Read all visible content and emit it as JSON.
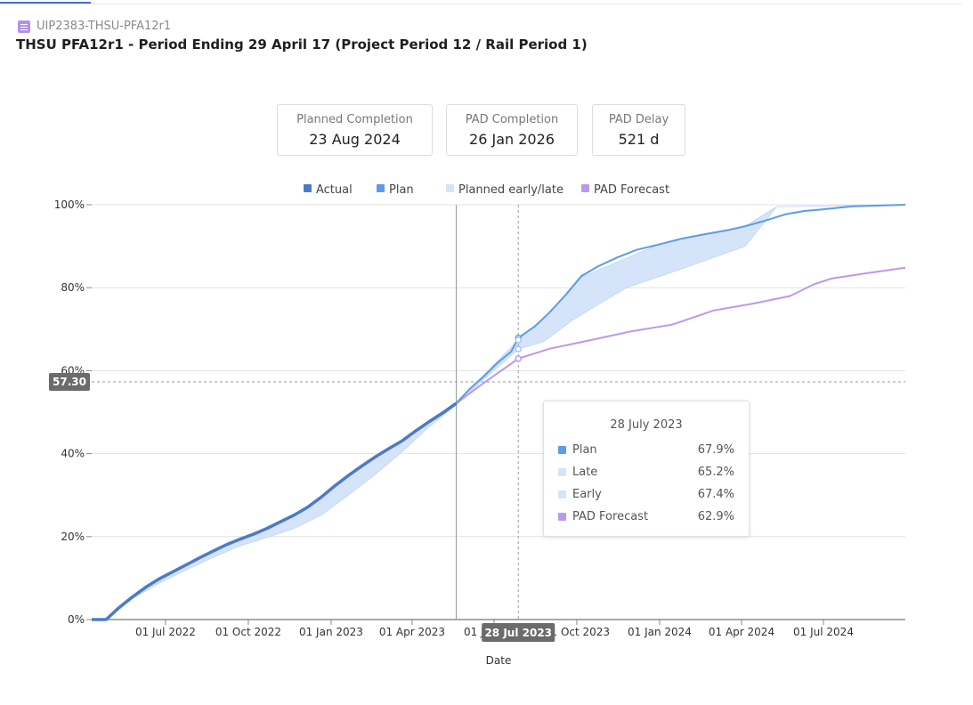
{
  "header": {
    "id": "UIP2383-THSU-PFA12r1",
    "title": "THSU PFA12r1 - Period Ending 29 April 17 (Project Period 12 / Rail Period 1)"
  },
  "cards": [
    {
      "label": "Planned Completion",
      "value": "23 Aug 2024"
    },
    {
      "label": "PAD Completion",
      "value": "26 Jan 2026"
    },
    {
      "label": "PAD Delay",
      "value": "521 d"
    }
  ],
  "colors": {
    "actual": "#4a7bc8",
    "plan": "#5b9bec",
    "band": "#d6e4fa",
    "pad": "#bb99ea"
  },
  "chart_data": {
    "type": "line",
    "xlabel": "Date",
    "ylim": [
      0,
      100
    ],
    "x_range": [
      "2022-04-10",
      "2024-09-30"
    ],
    "x_ticks": [
      {
        "date": "2022-07-01",
        "label": "01 Jul 2022"
      },
      {
        "date": "2022-10-01",
        "label": "01 Oct 2022"
      },
      {
        "date": "2023-01-01",
        "label": "01 Jan 2023"
      },
      {
        "date": "2023-04-01",
        "label": "01 Apr 2023"
      },
      {
        "date": "2023-07-01",
        "label": "01 Jul 2023"
      },
      {
        "date": "2023-10-01",
        "label": "01 Oct 2023"
      },
      {
        "date": "2024-01-01",
        "label": "01 Jan 2024"
      },
      {
        "date": "2024-04-01",
        "label": "01 Apr 2024"
      },
      {
        "date": "2024-07-01",
        "label": "01 Jul 2024"
      }
    ],
    "y_ticks": [
      {
        "value": 0,
        "label": "0%"
      },
      {
        "value": 20,
        "label": "20%"
      },
      {
        "value": 40,
        "label": "40%"
      },
      {
        "value": 60,
        "label": "60%"
      },
      {
        "value": 80,
        "label": "80%"
      },
      {
        "value": 100,
        "label": "100%"
      }
    ],
    "legend": {
      "placement": "top-center",
      "items": [
        {
          "name": "Actual",
          "color": "#4a7bc8"
        },
        {
          "name": "Plan",
          "color": "#5b9bec"
        },
        {
          "name": "Planned early/late",
          "color": "#d6e4fa"
        },
        {
          "name": "PAD Forecast",
          "color": "#bb99ea"
        }
      ]
    },
    "series": [
      {
        "name": "Actual",
        "points": [
          [
            "2022-04-10",
            0
          ],
          [
            "2022-04-26",
            0
          ],
          [
            "2022-05-10",
            2.8
          ],
          [
            "2022-05-25",
            5.4
          ],
          [
            "2022-06-09",
            7.8
          ],
          [
            "2022-06-24",
            9.8
          ],
          [
            "2022-07-09",
            11.5
          ],
          [
            "2022-07-24",
            13.2
          ],
          [
            "2022-08-08",
            14.9
          ],
          [
            "2022-08-23",
            16.5
          ],
          [
            "2022-09-07",
            18.1
          ],
          [
            "2022-09-22",
            19.4
          ],
          [
            "2022-10-07",
            20.6
          ],
          [
            "2022-10-22",
            22.0
          ],
          [
            "2022-11-06",
            23.6
          ],
          [
            "2022-11-21",
            25.2
          ],
          [
            "2022-12-06",
            27.1
          ],
          [
            "2022-12-21",
            29.5
          ],
          [
            "2023-01-05",
            32.2
          ],
          [
            "2023-01-20",
            34.7
          ],
          [
            "2023-02-04",
            37.0
          ],
          [
            "2023-02-19",
            39.2
          ],
          [
            "2023-03-06",
            41.2
          ],
          [
            "2023-03-21",
            43.1
          ],
          [
            "2023-04-05",
            45.5
          ],
          [
            "2023-04-20",
            47.7
          ],
          [
            "2023-05-05",
            49.8
          ],
          [
            "2023-05-20",
            52.1
          ]
        ]
      },
      {
        "name": "Plan",
        "points": [
          [
            "2023-05-20",
            52.1
          ],
          [
            "2023-06-05",
            55.8
          ],
          [
            "2023-06-20",
            58.7
          ],
          [
            "2023-07-05",
            61.9
          ],
          [
            "2023-07-20",
            64.6
          ],
          [
            "2023-07-28",
            67.9
          ],
          [
            "2023-08-15",
            70.6
          ],
          [
            "2023-09-01",
            74.1
          ],
          [
            "2023-09-20",
            78.6
          ],
          [
            "2023-10-06",
            82.8
          ],
          [
            "2023-10-25",
            85.2
          ],
          [
            "2023-11-15",
            87.3
          ],
          [
            "2023-12-06",
            89.1
          ],
          [
            "2023-12-31",
            90.4
          ],
          [
            "2024-01-25",
            91.8
          ],
          [
            "2024-02-20",
            92.9
          ],
          [
            "2024-03-15",
            93.8
          ],
          [
            "2024-04-05",
            94.8
          ],
          [
            "2024-04-28",
            96.2
          ],
          [
            "2024-05-20",
            97.7
          ],
          [
            "2024-06-10",
            98.5
          ],
          [
            "2024-07-01",
            98.9
          ],
          [
            "2024-08-01",
            99.6
          ],
          [
            "2024-09-30",
            100
          ]
        ]
      },
      {
        "name": "Planned early/late",
        "early": [
          [
            "2022-04-10",
            0
          ],
          [
            "2022-04-26",
            0
          ],
          [
            "2022-05-25",
            5.4
          ],
          [
            "2022-06-24",
            9.5
          ],
          [
            "2022-07-24",
            13.2
          ],
          [
            "2022-08-23",
            16.5
          ],
          [
            "2022-09-22",
            19.4
          ],
          [
            "2022-10-22",
            22.0
          ],
          [
            "2022-11-21",
            25.2
          ],
          [
            "2022-12-21",
            29.5
          ],
          [
            "2023-01-20",
            34.7
          ],
          [
            "2023-02-19",
            39.2
          ],
          [
            "2023-03-21",
            43.3
          ],
          [
            "2023-04-20",
            48.0
          ],
          [
            "2023-05-20",
            52.5
          ],
          [
            "2023-06-20",
            59.0
          ],
          [
            "2023-07-28",
            67.4
          ],
          [
            "2023-09-01",
            74.0
          ],
          [
            "2023-10-06",
            82.5
          ],
          [
            "2023-12-31",
            90.4
          ],
          [
            "2024-04-05",
            94.8
          ],
          [
            "2024-05-10",
            99.5
          ],
          [
            "2024-09-30",
            100
          ]
        ],
        "late": [
          [
            "2022-04-10",
            0
          ],
          [
            "2022-04-26",
            0
          ],
          [
            "2022-05-25",
            5.0
          ],
          [
            "2022-06-24",
            8.8
          ],
          [
            "2022-07-24",
            12.0
          ],
          [
            "2022-08-23",
            15.0
          ],
          [
            "2022-09-22",
            17.8
          ],
          [
            "2022-10-22",
            19.8
          ],
          [
            "2022-11-21",
            22.0
          ],
          [
            "2022-12-21",
            25.2
          ],
          [
            "2023-01-20",
            30.0
          ],
          [
            "2023-02-19",
            35.0
          ],
          [
            "2023-03-21",
            40.5
          ],
          [
            "2023-04-20",
            46.5
          ],
          [
            "2023-05-20",
            51.8
          ],
          [
            "2023-06-20",
            58.0
          ],
          [
            "2023-07-28",
            65.2
          ],
          [
            "2023-08-25",
            67.0
          ],
          [
            "2023-09-25",
            72.0
          ],
          [
            "2023-10-25",
            76.0
          ],
          [
            "2023-11-25",
            80.0
          ],
          [
            "2024-01-25",
            84.5
          ],
          [
            "2024-04-05",
            90.0
          ],
          [
            "2024-05-10",
            99.5
          ],
          [
            "2024-09-30",
            100
          ]
        ]
      },
      {
        "name": "PAD Forecast",
        "points": [
          [
            "2023-05-20",
            52.1
          ],
          [
            "2023-06-20",
            57.1
          ],
          [
            "2023-07-28",
            62.9
          ],
          [
            "2023-09-01",
            65.3
          ],
          [
            "2023-10-15",
            67.3
          ],
          [
            "2023-12-01",
            69.5
          ],
          [
            "2024-01-15",
            71.1
          ],
          [
            "2024-03-01",
            74.5
          ],
          [
            "2024-04-15",
            76.2
          ],
          [
            "2024-05-25",
            78.0
          ],
          [
            "2024-06-20",
            80.8
          ],
          [
            "2024-07-10",
            82.2
          ],
          [
            "2024-08-15",
            83.4
          ],
          [
            "2024-09-30",
            84.8
          ]
        ]
      }
    ],
    "today_line": "2023-05-20",
    "crosshair": {
      "date": "2023-07-28",
      "label": "28 Jul 2023",
      "y_value": 57.3,
      "y_label": "57.30"
    },
    "tooltip": {
      "title": "28 July 2023",
      "rows": [
        {
          "name": "Plan",
          "value": "67.9%",
          "color": "#5b9bec"
        },
        {
          "name": "Late",
          "value": "65.2%",
          "color": "#d6e4fa"
        },
        {
          "name": "Early",
          "value": "67.4%",
          "color": "#d6e4fa"
        },
        {
          "name": "PAD Forecast",
          "value": "62.9%",
          "color": "#bb99ea"
        }
      ]
    }
  }
}
